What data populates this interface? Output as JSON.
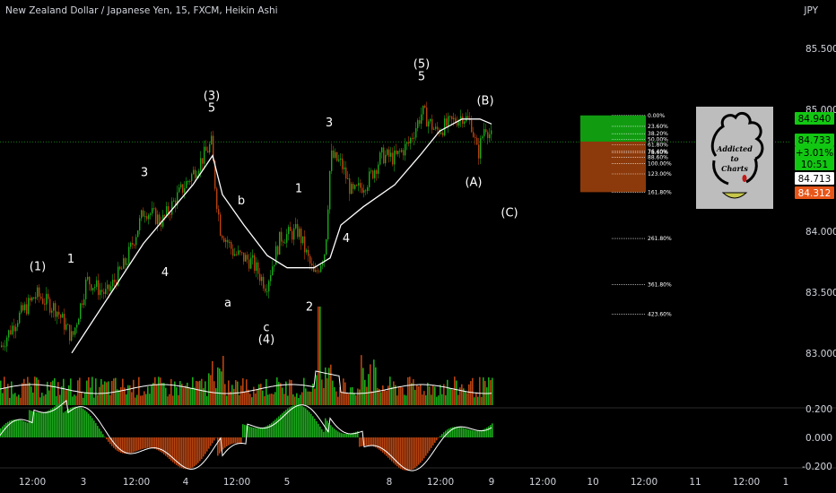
{
  "header": {
    "title": "New Zealand Dollar / Japanese Yen, 15, FXCM, Heikin Ashi",
    "currency": "JPY"
  },
  "colors": {
    "background": "#000000",
    "bull": "#1aa81a",
    "bear": "#b8420f",
    "ma": "#ffffff",
    "fib_green": "#119b11",
    "fib_brown": "#8c3a0b",
    "price_line": "#1aa81a"
  },
  "chart_data": {
    "type": "candlestick",
    "price_axis": {
      "min": 82.55,
      "max": 85.75,
      "ticks": [
        "85.500",
        "85.000",
        "84.000",
        "83.500",
        "83.000"
      ]
    },
    "time_axis": {
      "ticks": [
        "12:00",
        "3",
        "12:00",
        "4",
        "12:00",
        "5",
        "8",
        "12:00",
        "9",
        "12:00",
        "10",
        "12:00",
        "11",
        "12:00",
        "1"
      ]
    },
    "price_path": [
      [
        0,
        83.05
      ],
      [
        18,
        83.28
      ],
      [
        40,
        83.48
      ],
      [
        62,
        83.36
      ],
      [
        80,
        83.12
      ],
      [
        96,
        83.6
      ],
      [
        118,
        83.48
      ],
      [
        140,
        83.75
      ],
      [
        160,
        84.18
      ],
      [
        180,
        84.08
      ],
      [
        200,
        84.32
      ],
      [
        215,
        84.48
      ],
      [
        235,
        84.72
      ],
      [
        240,
        84.3
      ],
      [
        245,
        84.02
      ],
      [
        260,
        83.82
      ],
      [
        280,
        83.75
      ],
      [
        296,
        83.55
      ],
      [
        312,
        83.95
      ],
      [
        332,
        84.0
      ],
      [
        350,
        83.62
      ],
      [
        362,
        83.85
      ],
      [
        368,
        84.62
      ],
      [
        380,
        84.55
      ],
      [
        392,
        84.3
      ],
      [
        410,
        84.42
      ],
      [
        425,
        84.62
      ],
      [
        440,
        84.6
      ],
      [
        455,
        84.72
      ],
      [
        470,
        84.98
      ],
      [
        485,
        84.82
      ],
      [
        500,
        84.88
      ],
      [
        515,
        84.95
      ],
      [
        525,
        84.88
      ],
      [
        532,
        84.62
      ],
      [
        540,
        84.88
      ],
      [
        548,
        84.75
      ]
    ],
    "ma_path": [
      [
        80,
        83.0
      ],
      [
        160,
        83.9
      ],
      [
        215,
        84.38
      ],
      [
        237,
        84.62
      ],
      [
        248,
        84.3
      ],
      [
        272,
        84.05
      ],
      [
        298,
        83.8
      ],
      [
        320,
        83.7
      ],
      [
        350,
        83.7
      ],
      [
        368,
        83.78
      ],
      [
        380,
        84.05
      ],
      [
        405,
        84.2
      ],
      [
        440,
        84.38
      ],
      [
        468,
        84.62
      ],
      [
        490,
        84.82
      ],
      [
        515,
        84.92
      ],
      [
        535,
        84.92
      ],
      [
        548,
        84.88
      ]
    ],
    "current_price": 84.733,
    "price_tags": [
      {
        "value": 84.94,
        "label": "84.940",
        "bg": "#12c712",
        "fg": "#000000"
      },
      {
        "value": 84.733,
        "label": "84.733",
        "bg": "#12c712",
        "fg": "#000000"
      },
      {
        "value": 84.62,
        "label": "+3.01%",
        "bg": "#12c712",
        "fg": "#000000"
      },
      {
        "value": 84.5,
        "label": "10:51",
        "bg": "#12c712",
        "fg": "#000000"
      },
      {
        "value": 84.38,
        "label": "84.713",
        "bg": "#ffffff",
        "fg": "#000000"
      },
      {
        "value": 84.28,
        "label": "84.312",
        "bg": "#e8561a",
        "fg": "#ffffff"
      }
    ],
    "fib_levels": [
      {
        "label": "0.00%",
        "value": 84.95
      },
      {
        "label": "23.60%",
        "value": 84.86
      },
      {
        "label": "38.20%",
        "value": 84.8
      },
      {
        "label": "50.00%",
        "value": 84.755
      },
      {
        "label": "61.80%",
        "value": 84.71
      },
      {
        "label": "76.40%",
        "value": 84.655
      },
      {
        "label": "78.60%",
        "value": 84.645
      },
      {
        "label": "88.60%",
        "value": 84.605
      },
      {
        "label": "100.00%",
        "value": 84.555
      },
      {
        "label": "123.00%",
        "value": 84.47
      },
      {
        "label": "161.80%",
        "value": 84.32
      },
      {
        "label": "261.80%",
        "value": 83.94
      },
      {
        "label": "361.80%",
        "value": 83.56
      },
      {
        "label": "423.60%",
        "value": 83.32
      }
    ],
    "wave_labels": [
      {
        "text": "(1)",
        "x": 42,
        "y": 83.68
      },
      {
        "text": "1",
        "x": 79,
        "y": 83.74
      },
      {
        "text": "3",
        "x": 161,
        "y": 84.45
      },
      {
        "text": "4",
        "x": 184,
        "y": 83.63
      },
      {
        "text": "(3)",
        "x": 236,
        "y": 85.08
      },
      {
        "text": "5",
        "x": 236,
        "y": 84.98
      },
      {
        "text": "b",
        "x": 269,
        "y": 84.22
      },
      {
        "text": "a",
        "x": 254,
        "y": 83.38
      },
      {
        "text": "c",
        "x": 297,
        "y": 83.18
      },
      {
        "text": "(4)",
        "x": 297,
        "y": 83.08
      },
      {
        "text": "1",
        "x": 333,
        "y": 84.32
      },
      {
        "text": "2",
        "x": 345,
        "y": 83.35
      },
      {
        "text": "3",
        "x": 367,
        "y": 84.86
      },
      {
        "text": "4",
        "x": 386,
        "y": 83.91
      },
      {
        "text": "(5)",
        "x": 470,
        "y": 85.34
      },
      {
        "text": "5",
        "x": 470,
        "y": 85.24
      },
      {
        "text": "(B)",
        "x": 541,
        "y": 85.04
      },
      {
        "text": "(A)",
        "x": 528,
        "y": 84.37
      },
      {
        "text": "(C)",
        "x": 568,
        "y": 84.12
      }
    ],
    "volume_ticks": [
      "0.200"
    ],
    "oscillator_ticks": [
      "0.000",
      "-0.200"
    ]
  },
  "logo": {
    "line1": "Addicted",
    "line2": "to",
    "line3": "Charts"
  }
}
